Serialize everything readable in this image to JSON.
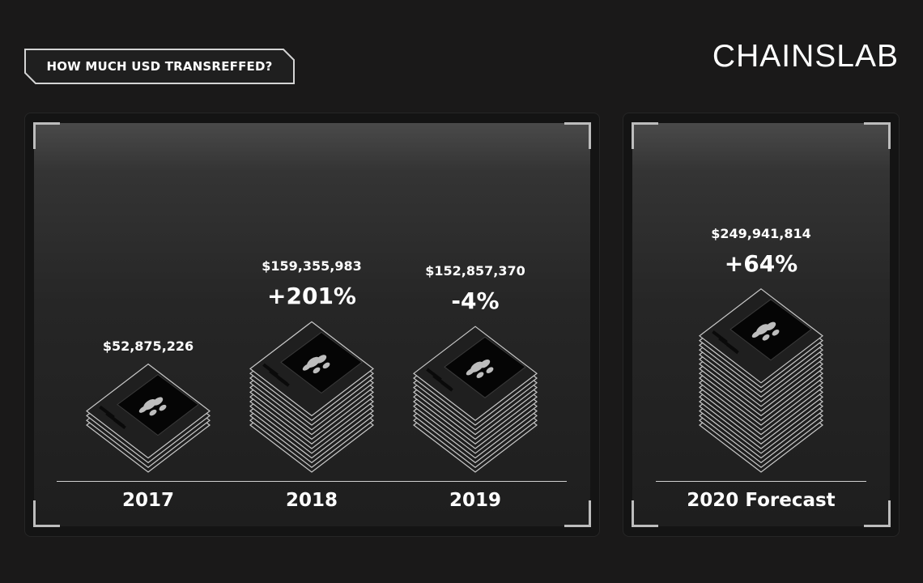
{
  "header": {
    "title": "HOW MUCH USD TRANSREFFED?",
    "logo": "CHAINSLAB"
  },
  "chart_data": {
    "type": "bar",
    "title": "HOW MUCH USD TRANSREFFED?",
    "categories": [
      "2017",
      "2018",
      "2019",
      "2020 Forecast"
    ],
    "values": [
      52875226,
      159355983,
      152857370,
      249941814
    ],
    "value_labels": [
      "$52,875,226",
      "$159,355,983",
      "$152,857,370",
      "$249,941,814"
    ],
    "change_labels": [
      "",
      "+201%",
      "-4%",
      "+64%"
    ],
    "series": [
      {
        "values": [
          52875226,
          159355983,
          152857370,
          249941814
        ]
      }
    ]
  },
  "colors": {
    "background": "#1a1919",
    "text": "#ffffff",
    "stack_fill": "#1f1f1f",
    "stack_stroke": "#c9c9c9"
  }
}
